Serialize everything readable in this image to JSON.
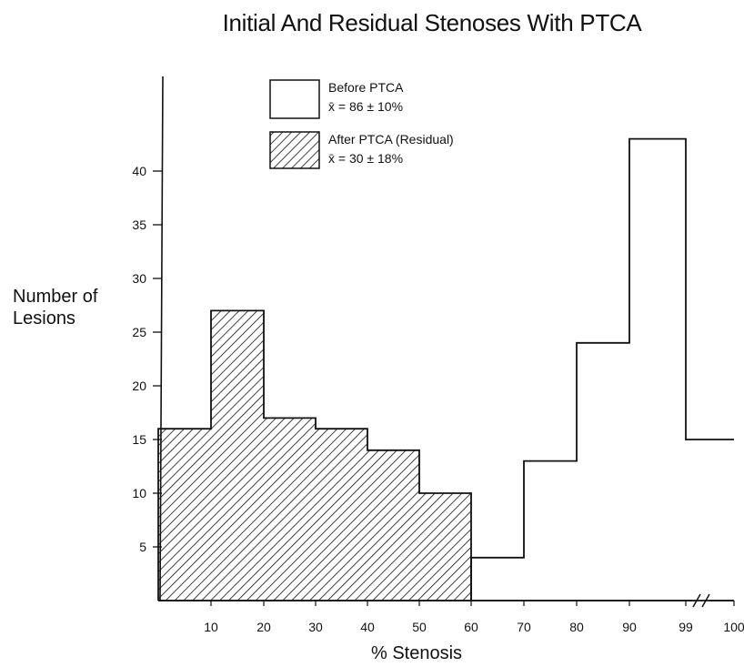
{
  "chart_data": {
    "type": "bar",
    "title": "Initial And Residual Stenoses With PTCA",
    "xlabel": "% Stenosis",
    "ylabel_lines": [
      "Number of",
      "Lesions"
    ],
    "x_ticks": [
      "10",
      "20",
      "30",
      "40",
      "50",
      "60",
      "70",
      "80",
      "90",
      "99",
      "100"
    ],
    "y_ticks": [
      5,
      10,
      15,
      20,
      25,
      30,
      35,
      40
    ],
    "ylim": [
      0,
      45
    ],
    "axis_break_between": [
      "99",
      "100"
    ],
    "bin_edges": [
      0,
      10,
      20,
      30,
      40,
      50,
      60,
      70,
      80,
      90,
      99,
      100
    ],
    "series": [
      {
        "name": "Before PTCA",
        "stat": "x̄ = 86 ± 10%",
        "fill": "none",
        "values": [
          0,
          0,
          0,
          0,
          0,
          0,
          4,
          13,
          24,
          43,
          15
        ]
      },
      {
        "name": "After PTCA (Residual)",
        "stat": "x̄ = 30 ± 18%",
        "fill": "hatched",
        "values": [
          16,
          27,
          17,
          16,
          14,
          10,
          0,
          0,
          0,
          0,
          0
        ]
      }
    ],
    "legend_position": "top-left",
    "grid": false,
    "colors": {
      "line": "#111111",
      "background": "#ffffff"
    }
  }
}
